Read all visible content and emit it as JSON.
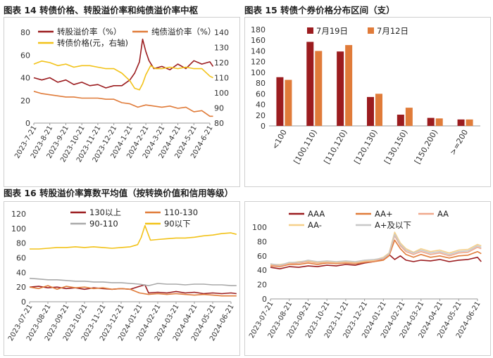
{
  "figures": {
    "f14": {
      "title": "图表 14  转债价格、转股溢价率和纯债溢价率中枢"
    },
    "f15": {
      "title": "图表 15  转债个券价格分布区间（支）"
    },
    "f16": {
      "title": "图表 16  转股溢价率算数平均值（按转换价值和信用等级）"
    }
  },
  "colors": {
    "dark_red": "#9b1c1f",
    "orange": "#e07b39",
    "gold": "#f2c218",
    "gray": "#a9a9a9",
    "peach": "#f0a88c",
    "pale": "#f5d08a",
    "light_gray": "#c8c8c8"
  },
  "chart_data": [
    {
      "id": "f14",
      "type": "line",
      "x_ticks": [
        "2023-7-21",
        "2023-8-21",
        "2023-9-21",
        "2023-10-21",
        "2023-11-21",
        "2023-12-21",
        "2024-1-21",
        "2024-2-21",
        "2024-3-21",
        "2024-4-21",
        "2024-5-21",
        "2024-6-21"
      ],
      "y_left": {
        "lim": [
          0,
          80
        ],
        "ticks": [
          0,
          20,
          40,
          60,
          80
        ]
      },
      "y_right": {
        "lim": [
          80,
          140
        ],
        "ticks": [
          80,
          90,
          100,
          110,
          120,
          130,
          140
        ]
      },
      "series": [
        {
          "name": "转股溢价率（%）",
          "axis": "left",
          "color": "#9b1c1f",
          "x": [
            0,
            0.5,
            1,
            1.5,
            2,
            2.5,
            3,
            3.5,
            4,
            4.5,
            5,
            5.5,
            6,
            6.3,
            6.6,
            6.8,
            7,
            7.2,
            7.5,
            8,
            8.5,
            9,
            9.5,
            10,
            10.5,
            11,
            11.2
          ],
          "y": [
            40,
            38,
            40,
            36,
            38,
            34,
            36,
            33,
            34,
            31,
            33,
            33,
            38,
            44,
            54,
            74,
            63,
            55,
            48,
            50,
            47,
            52,
            48,
            55,
            52,
            54,
            50
          ]
        },
        {
          "name": "纯债溢价率（%）",
          "axis": "left",
          "color": "#e07b39",
          "x": [
            0,
            0.5,
            1,
            1.5,
            2,
            2.5,
            3,
            3.5,
            4,
            4.5,
            5,
            5.5,
            6,
            6.5,
            7,
            7.5,
            8,
            8.5,
            9,
            9.5,
            10,
            10.5,
            11,
            11.2
          ],
          "y": [
            28,
            26,
            25,
            24,
            23,
            23,
            22,
            22,
            22,
            21,
            21,
            18,
            17,
            14,
            16,
            15,
            14,
            15,
            13,
            14,
            10,
            11,
            6,
            6
          ]
        },
        {
          "name": "转债价格(元，右轴)",
          "axis": "right",
          "color": "#f2c218",
          "x": [
            0,
            0.5,
            1,
            1.5,
            2,
            2.5,
            3,
            3.5,
            4,
            4.5,
            5,
            5.5,
            6,
            6.3,
            6.6,
            6.8,
            7,
            7.3,
            7.6,
            8,
            8.5,
            9,
            9.5,
            10,
            10.5,
            11,
            11.2
          ],
          "y": [
            119,
            121,
            120,
            118,
            119,
            117,
            118,
            118,
            117,
            116,
            116,
            113,
            108,
            103,
            102,
            106,
            112,
            118,
            116,
            116,
            117,
            116,
            117,
            116,
            116,
            111,
            110
          ]
        }
      ]
    },
    {
      "id": "f15",
      "type": "bar",
      "categories": [
        "<100",
        "[100,110)",
        "[110,120)",
        "[120,130)",
        "[130,150)",
        "[150,200)",
        ">=200"
      ],
      "y": {
        "lim": [
          0,
          180
        ],
        "ticks": [
          0,
          20,
          40,
          60,
          80,
          100,
          120,
          140,
          160,
          180
        ]
      },
      "series": [
        {
          "name": "7月19日",
          "color": "#9b1c1f",
          "values": [
            91,
            157,
            139,
            54,
            21,
            15,
            12
          ]
        },
        {
          "name": "7月12日",
          "color": "#e07b39",
          "values": [
            86,
            140,
            151,
            60,
            34,
            14,
            12
          ]
        }
      ]
    },
    {
      "id": "f16",
      "type": "line",
      "x_ticks": [
        "2023-07-21",
        "2023-08-21",
        "2023-09-21",
        "2023-10-21",
        "2023-11-21",
        "2023-12-21",
        "2024-01-21",
        "2024-02-21",
        "2024-03-21",
        "2024-04-21",
        "2024-05-21",
        "2024-06-21"
      ],
      "y": {
        "lim": [
          0,
          120
        ],
        "ticks": [
          0,
          20,
          40,
          60,
          80,
          100,
          120
        ]
      },
      "series": [
        {
          "name": "130以上",
          "color": "#9b1c1f",
          "x": [
            0,
            0.5,
            1,
            1.5,
            2,
            2.5,
            3,
            3.5,
            4,
            4.5,
            5,
            5.5,
            6,
            6.3,
            6.5,
            7,
            7.5,
            8,
            8.5,
            9,
            9.5,
            10,
            10.5,
            11,
            11.3
          ],
          "y": [
            20,
            21,
            19,
            20,
            18,
            19,
            17,
            19,
            18,
            17,
            18,
            17,
            21,
            23,
            12,
            13,
            12,
            14,
            12,
            13,
            11,
            12,
            11,
            12,
            11
          ]
        },
        {
          "name": "110-130",
          "color": "#e07b39",
          "x": [
            0,
            0.5,
            1,
            1.5,
            2,
            2.5,
            3,
            3.5,
            4,
            4.5,
            5,
            5.5,
            6,
            6.5,
            7,
            7.5,
            8,
            8.5,
            9,
            9.5,
            10,
            10.5,
            11,
            11.3
          ],
          "y": [
            20,
            18,
            22,
            17,
            21,
            19,
            20,
            18,
            19,
            17,
            18,
            17,
            12,
            10,
            11,
            10,
            11,
            10,
            9,
            10,
            9,
            8,
            8,
            8
          ]
        },
        {
          "name": "90-110",
          "color": "#a9a9a9",
          "x": [
            0,
            0.5,
            1,
            1.5,
            2,
            2.5,
            3,
            3.5,
            4,
            4.5,
            5,
            5.5,
            6,
            6.5,
            7,
            7.5,
            8,
            8.5,
            9,
            9.5,
            10,
            10.5,
            11,
            11.3
          ],
          "y": [
            32,
            31,
            30,
            30,
            29,
            28,
            28,
            27,
            27,
            26,
            26,
            25,
            24,
            22,
            25,
            24,
            24,
            23,
            24,
            24,
            23,
            23,
            22,
            22
          ]
        },
        {
          "name": "90以下",
          "color": "#f2c218",
          "x": [
            0,
            0.5,
            1,
            1.5,
            2,
            2.5,
            3,
            3.5,
            4,
            4.5,
            5,
            5.5,
            5.9,
            6.1,
            6.3,
            6.6,
            7,
            7.5,
            8,
            8.5,
            9,
            9.5,
            10,
            10.5,
            11,
            11.3
          ],
          "y": [
            72,
            72,
            73,
            74,
            74,
            75,
            74,
            75,
            74,
            73,
            74,
            75,
            78,
            88,
            104,
            84,
            85,
            86,
            87,
            87,
            88,
            90,
            91,
            93,
            94,
            92
          ]
        }
      ]
    },
    {
      "id": "f17",
      "type": "line",
      "x_ticks": [
        "2023-07-21",
        "2023-08-21",
        "2023-09-21",
        "2023-10-21",
        "2023-11-21",
        "2023-12-21",
        "2024-01-21",
        "2024-02-21",
        "2024-03-21",
        "2024-04-21",
        "2024-05-21",
        "2024-06-21"
      ],
      "y": {
        "lim": [
          0,
          100
        ],
        "ticks": [
          0,
          20,
          40,
          60,
          80,
          100
        ]
      },
      "series": [
        {
          "name": "AAA",
          "color": "#9b1c1f",
          "x": [
            0,
            0.5,
            1,
            1.5,
            2,
            2.5,
            3,
            3.5,
            4,
            4.5,
            5,
            5.5,
            6,
            6.3,
            6.6,
            6.9,
            7.2,
            7.6,
            8,
            8.5,
            9,
            9.5,
            10,
            10.5,
            11,
            11.2
          ],
          "y": [
            44,
            42,
            45,
            44,
            46,
            45,
            47,
            46,
            48,
            47,
            50,
            52,
            56,
            62,
            55,
            60,
            54,
            52,
            54,
            53,
            55,
            52,
            54,
            55,
            58,
            52
          ]
        },
        {
          "name": "AA+",
          "color": "#e07b39",
          "x": [
            0,
            0.5,
            1,
            1.5,
            2,
            2.5,
            3,
            3.5,
            4,
            4.5,
            5,
            5.5,
            6,
            6.3,
            6.6,
            6.9,
            7.2,
            7.6,
            8,
            8.5,
            9,
            9.5,
            10,
            10.5,
            11,
            11.2
          ],
          "y": [
            46,
            45,
            48,
            48,
            50,
            48,
            50,
            49,
            50,
            49,
            51,
            52,
            54,
            60,
            82,
            70,
            62,
            58,
            62,
            58,
            60,
            57,
            60,
            61,
            66,
            63
          ]
        },
        {
          "name": "AA",
          "color": "#f0a88c",
          "x": [
            0,
            0.5,
            1,
            1.5,
            2,
            2.5,
            3,
            3.5,
            4,
            4.5,
            5,
            5.5,
            6,
            6.3,
            6.6,
            6.9,
            7.2,
            7.6,
            8,
            8.5,
            9,
            9.5,
            10,
            10.5,
            11,
            11.2
          ],
          "y": [
            47,
            46,
            49,
            50,
            52,
            50,
            51,
            50,
            51,
            50,
            52,
            53,
            56,
            62,
            88,
            74,
            66,
            62,
            66,
            62,
            64,
            60,
            64,
            65,
            72,
            70
          ]
        },
        {
          "name": "AA-",
          "color": "#f5d08a",
          "x": [
            0,
            0.5,
            1,
            1.5,
            2,
            2.5,
            3,
            3.5,
            4,
            4.5,
            5,
            5.5,
            6,
            6.3,
            6.6,
            6.9,
            7.2,
            7.6,
            8,
            8.5,
            9,
            9.5,
            10,
            10.5,
            11,
            11.2
          ],
          "y": [
            48,
            48,
            50,
            52,
            53,
            51,
            52,
            51,
            52,
            51,
            53,
            54,
            58,
            64,
            93,
            78,
            70,
            65,
            70,
            66,
            68,
            64,
            68,
            69,
            76,
            74
          ]
        },
        {
          "name": "A+及以下",
          "color": "#c8c8c8",
          "x": [
            0,
            0.5,
            1,
            1.5,
            2,
            2.5,
            3,
            3.5,
            4,
            4.5,
            5,
            5.5,
            6,
            6.3,
            6.6,
            6.9,
            7.2,
            7.6,
            8,
            8.5,
            9,
            9.5,
            10,
            10.5,
            11,
            11.2
          ],
          "y": [
            49,
            47,
            51,
            51,
            54,
            52,
            53,
            52,
            53,
            52,
            54,
            55,
            57,
            63,
            90,
            76,
            68,
            64,
            68,
            64,
            66,
            62,
            66,
            67,
            74,
            72
          ]
        }
      ]
    }
  ]
}
